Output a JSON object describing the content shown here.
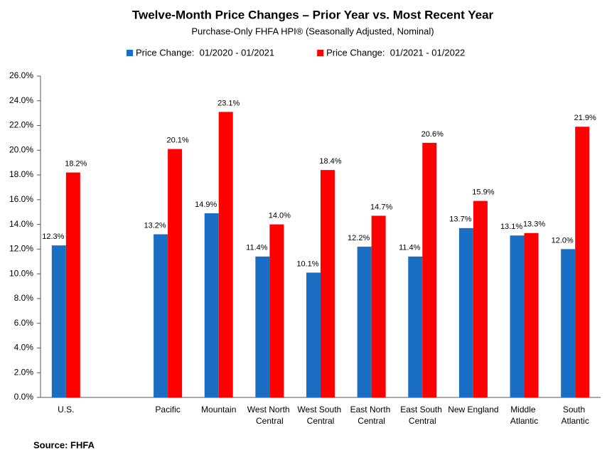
{
  "chart_data": {
    "type": "bar",
    "title": "Twelve-Month Price Changes – Prior Year vs. Most Recent Year",
    "subtitle": "Purchase-Only FHFA HPI® (Seasonally Adjusted, Nominal)",
    "source": "Source: FHFA",
    "categories": [
      "U.S.",
      null,
      "Pacific",
      "Mountain",
      "West North Central",
      "West South Central",
      "East North Central",
      "East South Central",
      "New England",
      "Middle Atlantic",
      "South Atlantic"
    ],
    "series": [
      {
        "name": "Price Change:  01/2020 - 01/2021",
        "color": "#1a6fc4",
        "values": [
          12.3,
          null,
          13.2,
          14.9,
          11.4,
          10.1,
          12.2,
          11.4,
          13.7,
          13.1,
          12.0
        ],
        "value_labels": [
          "12.3%",
          null,
          "13.2%",
          "14.9%",
          "11.4%",
          "10.1%",
          "12.2%",
          "11.4%",
          "13.7%",
          "13.1%",
          "12.0%"
        ]
      },
      {
        "name": "Price Change:  01/2021 - 01/2022",
        "color": "#ff0000",
        "values": [
          18.2,
          null,
          20.1,
          23.1,
          14.0,
          18.4,
          14.7,
          20.6,
          15.9,
          13.3,
          21.9
        ],
        "value_labels": [
          "18.2%",
          null,
          "20.1%",
          "23.1%",
          "14.0%",
          "18.4%",
          "14.7%",
          "20.6%",
          "15.9%",
          "13.3%",
          "21.9%"
        ]
      }
    ],
    "ylim": [
      0,
      26
    ],
    "yticks": [
      {
        "value": 0,
        "label": "0.0%"
      },
      {
        "value": 2,
        "label": "2.0%"
      },
      {
        "value": 4,
        "label": "4.0%"
      },
      {
        "value": 6,
        "label": "6.0%"
      },
      {
        "value": 8,
        "label": "8.0%"
      },
      {
        "value": 10,
        "label": "10.0%"
      },
      {
        "value": 12,
        "label": "12.0%"
      },
      {
        "value": 14,
        "label": "14.0%"
      },
      {
        "value": 16,
        "label": "16.0%"
      },
      {
        "value": 18,
        "label": "18.0%"
      },
      {
        "value": 20,
        "label": "20.0%"
      },
      {
        "value": 22,
        "label": "22.0%"
      },
      {
        "value": 24,
        "label": "24.0%"
      },
      {
        "value": 26,
        "label": "26.0%"
      }
    ],
    "grid": false
  }
}
